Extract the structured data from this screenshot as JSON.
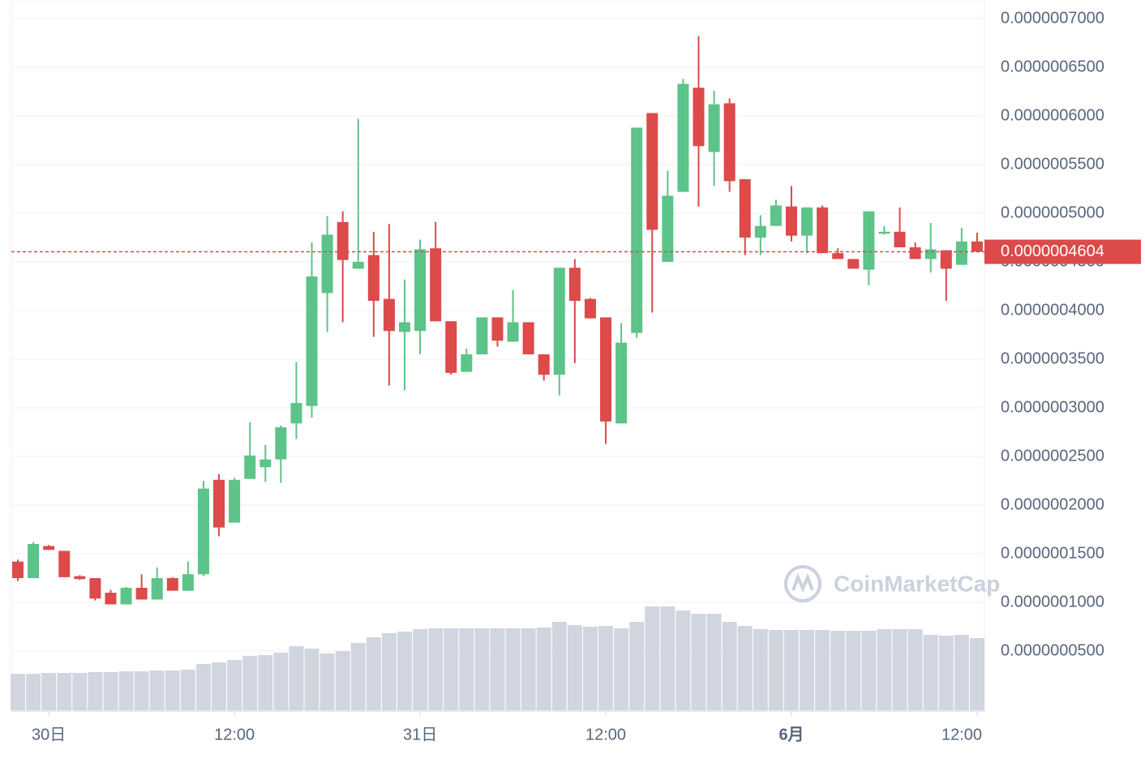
{
  "chart_data": {
    "type": "candlestick",
    "categories": [
      null,
      null,
      "30日",
      null,
      null,
      null,
      null,
      null,
      null,
      null,
      null,
      null,
      null,
      null,
      "12:00",
      null,
      null,
      null,
      null,
      null,
      null,
      null,
      null,
      null,
      null,
      null,
      "31日",
      null,
      null,
      null,
      null,
      null,
      null,
      null,
      null,
      null,
      null,
      null,
      "12:00",
      null,
      null,
      null,
      null,
      null,
      null,
      null,
      null,
      null,
      null,
      null,
      "6月",
      null,
      null,
      null,
      null,
      null,
      null,
      null,
      null,
      null,
      null,
      null,
      "12:00"
    ],
    "open": [
      1.42e-07,
      1.25e-07,
      1.58e-07,
      1.53e-07,
      1.27e-07,
      1.25e-07,
      1.1e-07,
      9.8e-08,
      1.15e-07,
      1.03e-07,
      1.25e-07,
      1.12e-07,
      1.29e-07,
      2.26e-07,
      1.82e-07,
      2.27e-07,
      2.39e-07,
      2.47e-07,
      2.84e-07,
      3.02e-07,
      4.18e-07,
      4.91e-07,
      4.43e-07,
      4.57e-07,
      4.12e-07,
      3.78e-07,
      3.79e-07,
      4.64e-07,
      3.89e-07,
      3.37e-07,
      3.55e-07,
      3.93e-07,
      3.68e-07,
      3.88e-07,
      3.55e-07,
      3.34e-07,
      4.44e-07,
      4.12e-07,
      3.93e-07,
      2.84e-07,
      3.77e-07,
      6.03e-07,
      4.5e-07,
      5.22e-07,
      6.29e-07,
      5.63e-07,
      6.13e-07,
      5.35e-07,
      4.75e-07,
      4.87e-07,
      5.07e-07,
      4.77e-07,
      5.06e-07,
      4.59e-07,
      4.53e-07,
      4.42e-07,
      4.79e-07,
      4.81e-07,
      4.65e-07,
      4.53e-07,
      4.62e-07,
      4.47e-07,
      4.71e-07
    ],
    "high": [
      1.44e-07,
      1.62e-07,
      1.59e-07,
      1.53e-07,
      1.28e-07,
      1.25e-07,
      1.13e-07,
      1.16e-07,
      1.29e-07,
      1.36e-07,
      1.26e-07,
      1.42e-07,
      2.25e-07,
      2.32e-07,
      2.28e-07,
      2.85e-07,
      2.62e-07,
      2.82e-07,
      3.47e-07,
      4.7e-07,
      4.97e-07,
      5.02e-07,
      5.97e-07,
      4.81e-07,
      4.89e-07,
      4.32e-07,
      4.73e-07,
      4.91e-07,
      3.89e-07,
      3.61e-07,
      3.93e-07,
      3.93e-07,
      4.21e-07,
      3.88e-07,
      3.55e-07,
      4.44e-07,
      4.53e-07,
      4.13e-07,
      3.93e-07,
      3.87e-07,
      5.88e-07,
      6.03e-07,
      5.44e-07,
      6.38e-07,
      6.82e-07,
      6.26e-07,
      6.18e-07,
      5.35e-07,
      4.98e-07,
      5.14e-07,
      5.28e-07,
      5.06e-07,
      5.08e-07,
      4.64e-07,
      4.53e-07,
      5.02e-07,
      4.87e-07,
      5.06e-07,
      4.7e-07,
      4.9e-07,
      4.62e-07,
      4.85e-07,
      4.8e-07
    ],
    "low": [
      1.22e-07,
      1.25e-07,
      1.54e-07,
      1.26e-07,
      1.23e-07,
      1.02e-07,
      9.8e-08,
      9.8e-08,
      1.03e-07,
      1.03e-07,
      1.12e-07,
      1.12e-07,
      1.27e-07,
      1.68e-07,
      1.82e-07,
      2.27e-07,
      2.24e-07,
      2.23e-07,
      2.68e-07,
      2.9e-07,
      3.78e-07,
      3.88e-07,
      4.43e-07,
      3.73e-07,
      3.23e-07,
      3.18e-07,
      3.55e-07,
      3.89e-07,
      3.34e-07,
      3.37e-07,
      3.55e-07,
      3.63e-07,
      3.68e-07,
      3.55e-07,
      3.28e-07,
      3.13e-07,
      3.46e-07,
      3.92e-07,
      2.63e-07,
      2.84e-07,
      3.72e-07,
      3.98e-07,
      4.5e-07,
      5.22e-07,
      5.07e-07,
      5.28e-07,
      5.22e-07,
      4.57e-07,
      4.57e-07,
      4.87e-07,
      4.71e-07,
      4.59e-07,
      4.59e-07,
      4.53e-07,
      4.43e-07,
      4.26e-07,
      4.78e-07,
      4.65e-07,
      4.53e-07,
      4.39e-07,
      4.1e-07,
      4.47e-07,
      4.604e-07
    ],
    "close": [
      1.25e-07,
      1.6e-07,
      1.54e-07,
      1.26e-07,
      1.24e-07,
      1.04e-07,
      9.8e-08,
      1.15e-07,
      1.03e-07,
      1.25e-07,
      1.12e-07,
      1.29e-07,
      2.17e-07,
      1.77e-07,
      2.26e-07,
      2.51e-07,
      2.47e-07,
      2.8e-07,
      3.05e-07,
      4.35e-07,
      4.78e-07,
      4.52e-07,
      4.5e-07,
      4.1e-07,
      3.79e-07,
      3.88e-07,
      4.63e-07,
      3.89e-07,
      3.36e-07,
      3.55e-07,
      3.93e-07,
      3.69e-07,
      3.88e-07,
      3.55e-07,
      3.34e-07,
      4.44e-07,
      4.1e-07,
      3.92e-07,
      2.86e-07,
      3.67e-07,
      5.88e-07,
      4.83e-07,
      5.18e-07,
      6.33e-07,
      5.69e-07,
      6.12e-07,
      5.33e-07,
      4.75e-07,
      4.87e-07,
      5.08e-07,
      4.77e-07,
      5.06e-07,
      4.59e-07,
      4.53e-07,
      4.43e-07,
      5.02e-07,
      4.81e-07,
      4.65e-07,
      4.53e-07,
      4.63e-07,
      4.43e-07,
      4.71e-07,
      4.604e-07
    ],
    "volume": [
      45,
      45,
      46,
      46,
      46,
      47,
      47,
      48,
      48,
      49,
      49,
      50,
      57,
      59,
      62,
      67,
      68,
      71,
      79,
      76,
      70,
      73,
      83,
      90,
      95,
      97,
      100,
      101,
      101,
      101,
      101,
      101,
      101,
      101,
      102,
      109,
      105,
      103,
      104,
      101,
      109,
      128,
      128,
      123,
      119,
      119,
      109,
      104,
      100,
      99,
      99,
      99,
      99,
      98,
      98,
      98,
      100,
      100,
      100,
      93,
      92,
      93,
      89
    ],
    "ylim": [
      -1.08e-08,
      7.192e-07
    ],
    "yticks": [
      {
        "value": 7e-07,
        "label": "0.0000007000"
      },
      {
        "value": 6.5e-07,
        "label": "0.0000006500"
      },
      {
        "value": 6e-07,
        "label": "0.0000006000"
      },
      {
        "value": 5.5e-07,
        "label": "0.0000005500"
      },
      {
        "value": 5e-07,
        "label": "0.0000005000"
      },
      {
        "value": 4.5e-07,
        "label": "0.0000004500"
      },
      {
        "value": 4e-07,
        "label": "0.0000004000"
      },
      {
        "value": 3.5e-07,
        "label": "0.0000003500"
      },
      {
        "value": 3e-07,
        "label": "0.0000003000"
      },
      {
        "value": 2.5e-07,
        "label": "0.0000002500"
      },
      {
        "value": 2e-07,
        "label": "0.0000002000"
      },
      {
        "value": 1.5e-07,
        "label": "0.0000001500"
      },
      {
        "value": 1e-07,
        "label": "0.0000001000"
      },
      {
        "value": 5e-08,
        "label": "0.0000000500"
      }
    ],
    "vlim": [
      0,
      150
    ],
    "grid": true,
    "up_color": "#5cc389",
    "down_color": "#dc4a4a",
    "volume_color": "#d1d5e0",
    "current_price": {
      "value": 4.604e-07,
      "label": "0.0000004604"
    },
    "watermark": "CoinMarketCap"
  }
}
